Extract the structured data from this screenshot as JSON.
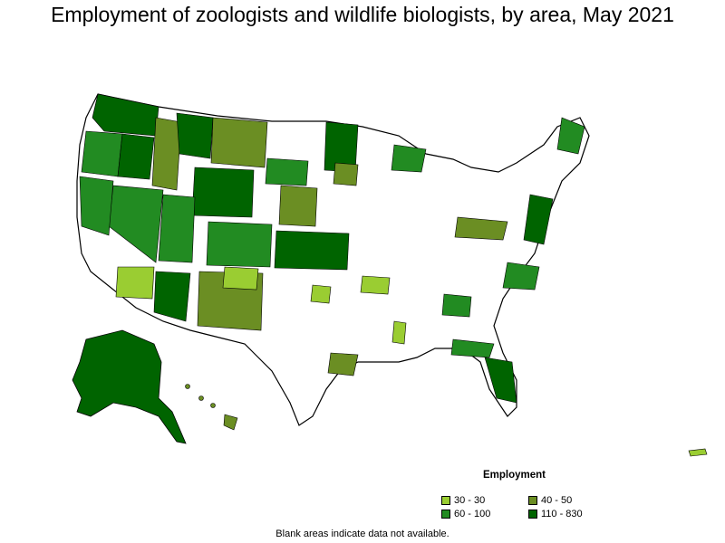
{
  "title": "Employment of zoologists and wildlife biologists, by area, May 2021",
  "legend": {
    "title": "Employment",
    "items": [
      {
        "label": "30 - 30",
        "color": "#9acd32"
      },
      {
        "label": "40 - 50",
        "color": "#6b8e23"
      },
      {
        "label": "60 - 100",
        "color": "#228b22"
      },
      {
        "label": "110 - 830",
        "color": "#006400"
      }
    ]
  },
  "footnote": "Blank areas indicate data not available."
}
